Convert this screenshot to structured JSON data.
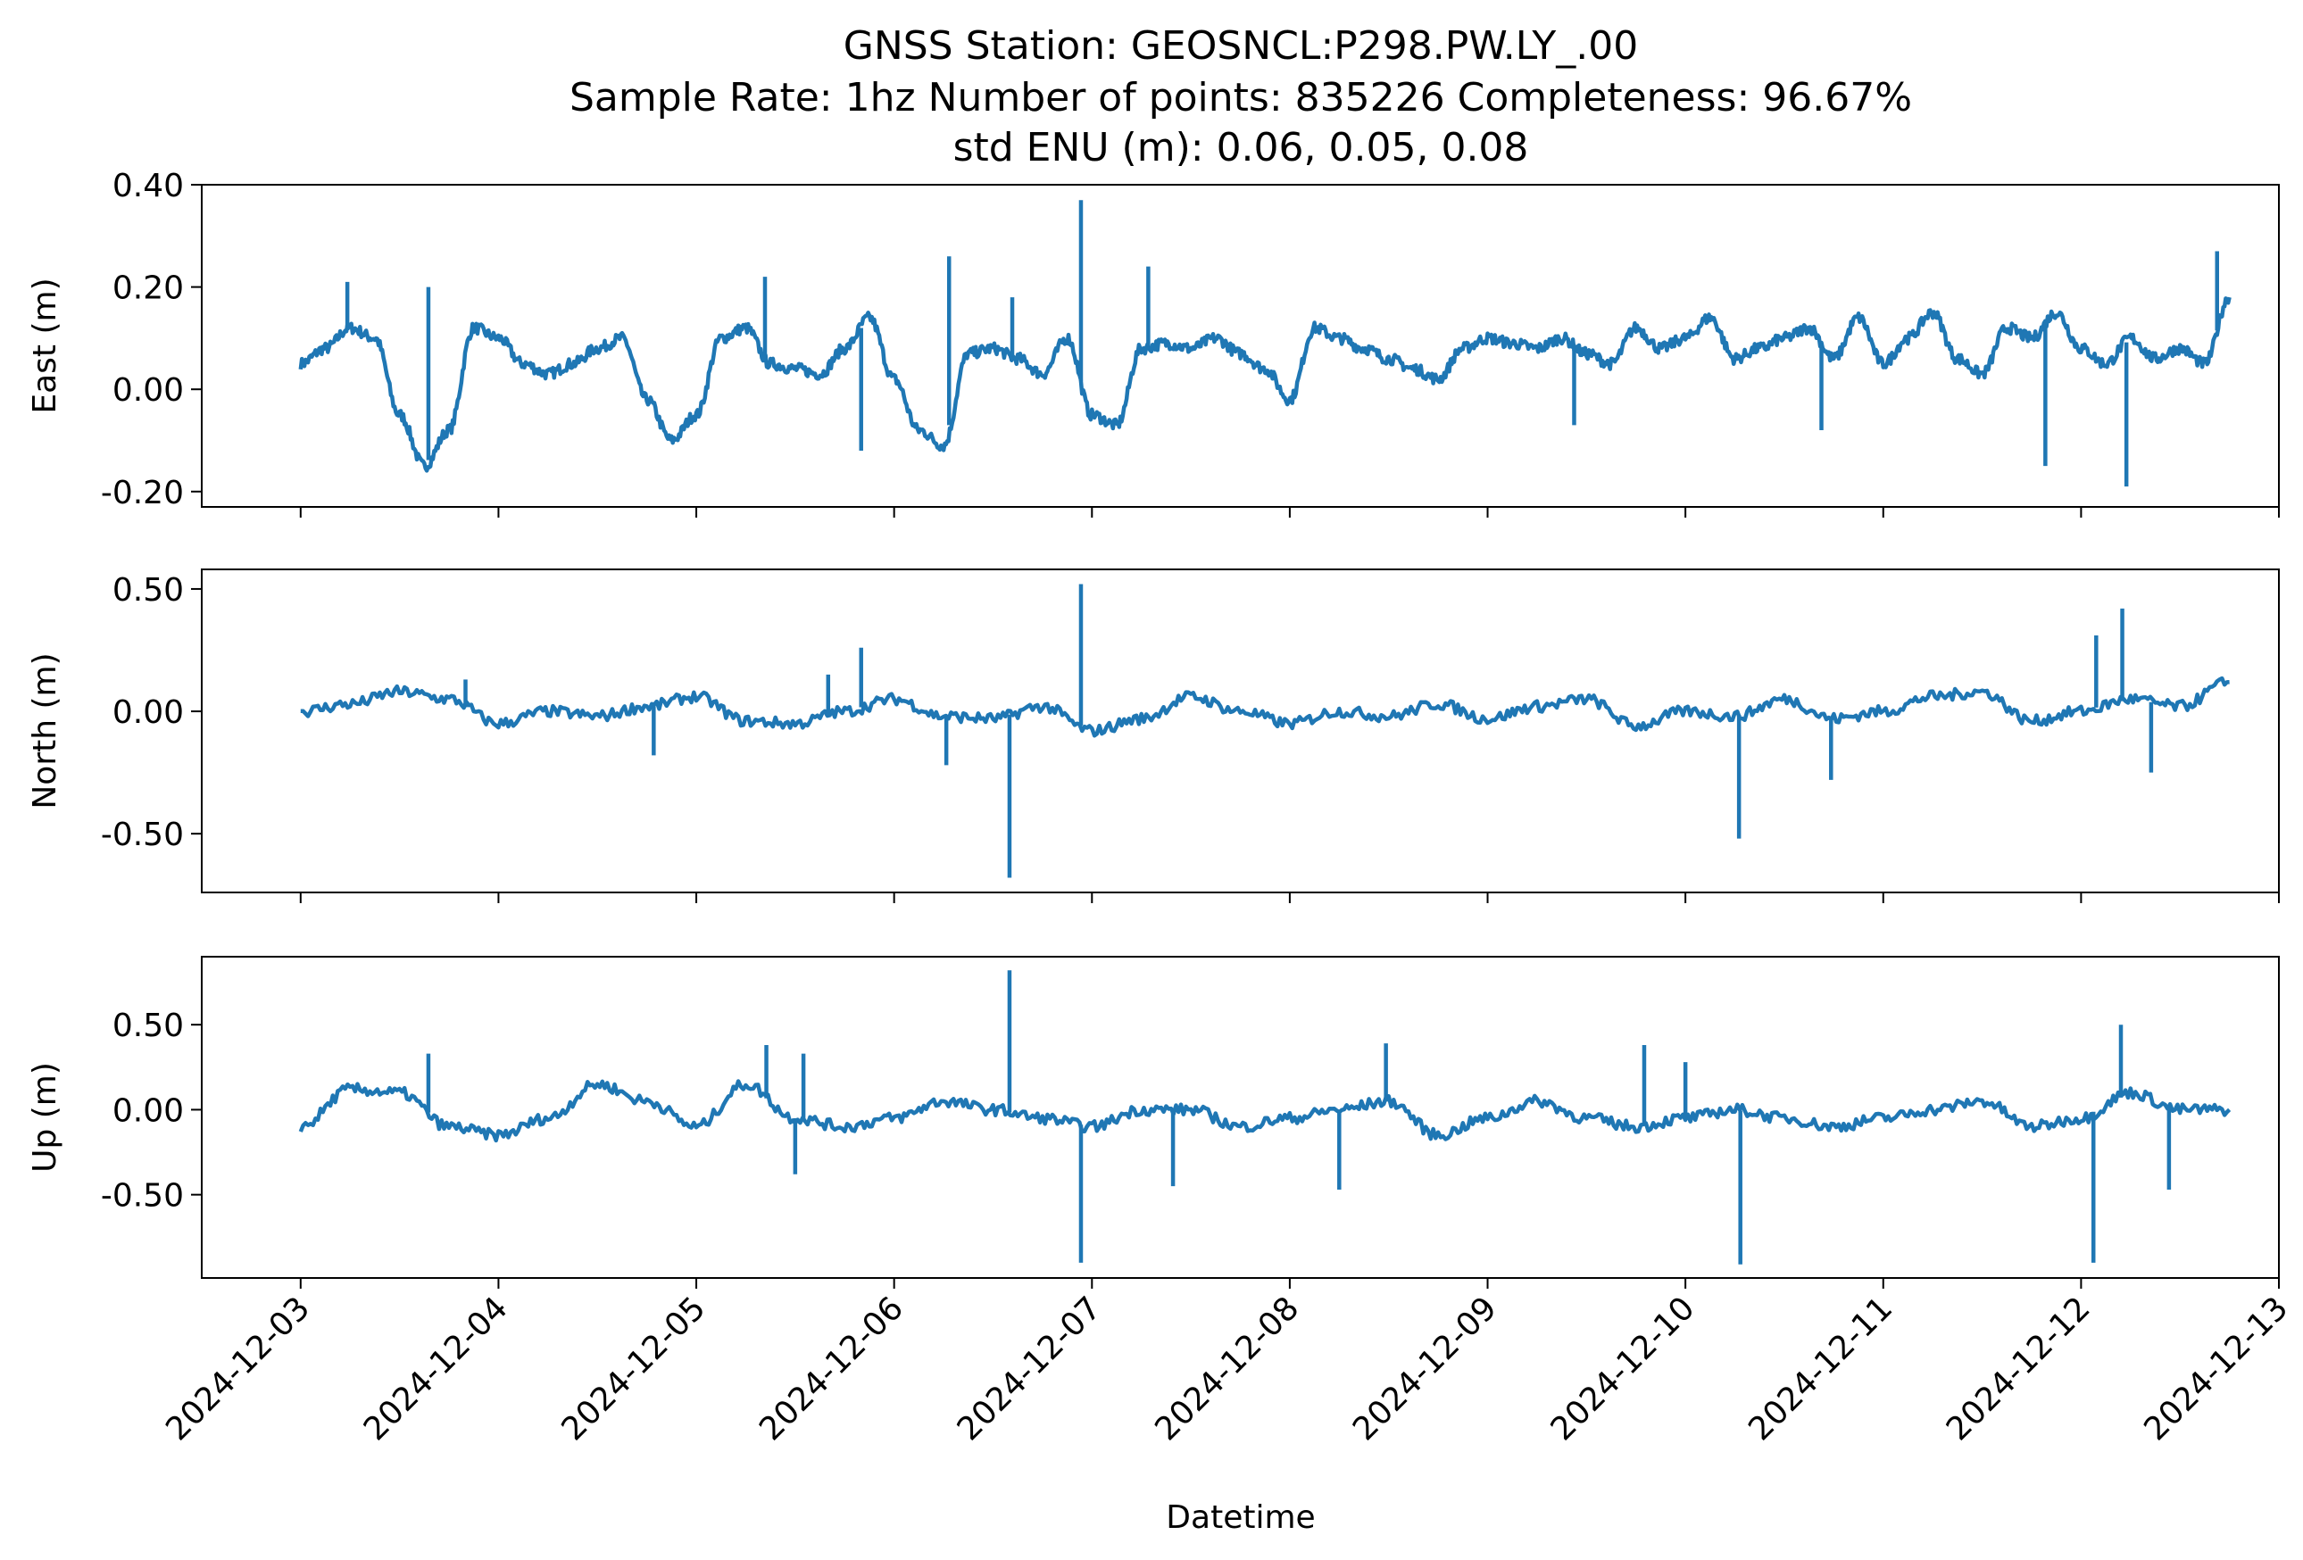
{
  "chart_data": {
    "type": "line",
    "title_lines": [
      "GNSS Station: GEOSNCL:P298.PW.LY_.00",
      "Sample Rate: 1hz   Number of points: 835226    Completeness:  96.67%",
      "std ENU (m):  0.06, 0.05, 0.08"
    ],
    "xlabel": "Datetime",
    "x_ticks": [
      "2024-12-03",
      "2024-12-04",
      "2024-12-05",
      "2024-12-06",
      "2024-12-07",
      "2024-12-08",
      "2024-12-09",
      "2024-12-10",
      "2024-12-11",
      "2024-12-12",
      "2024-12-13"
    ],
    "xlim": [
      "2024-12-02T12:00",
      "2024-12-13T00:00"
    ],
    "line_color": "#1f77b4",
    "grid": false,
    "panels": [
      {
        "ylabel": "East (m)",
        "ylim": [
          -0.23,
          0.4
        ],
        "y_ticks": [
          {
            "value": 0.4,
            "label": "0.40"
          },
          {
            "value": 0.2,
            "label": "0.20"
          },
          {
            "value": 0.0,
            "label": "0.00"
          },
          {
            "value": -0.2,
            "label": "-0.20"
          }
        ],
        "x": [
          "2024-12-03T00:00",
          "2024-12-03T03:00",
          "2024-12-03T06:00",
          "2024-12-03T09:00",
          "2024-12-03T12:00",
          "2024-12-03T15:00",
          "2024-12-03T18:00",
          "2024-12-03T21:00",
          "2024-12-04T00:00",
          "2024-12-04T03:00",
          "2024-12-04T06:00",
          "2024-12-04T09:00",
          "2024-12-04T12:00",
          "2024-12-04T15:00",
          "2024-12-04T18:00",
          "2024-12-04T21:00",
          "2024-12-05T00:00",
          "2024-12-05T03:00",
          "2024-12-05T06:00",
          "2024-12-05T09:00",
          "2024-12-05T12:00",
          "2024-12-05T15:00",
          "2024-12-05T18:00",
          "2024-12-05T21:00",
          "2024-12-06T00:00",
          "2024-12-06T03:00",
          "2024-12-06T06:00",
          "2024-12-06T09:00",
          "2024-12-06T12:00",
          "2024-12-06T15:00",
          "2024-12-06T18:00",
          "2024-12-06T21:00",
          "2024-12-07T00:00",
          "2024-12-07T03:00",
          "2024-12-07T06:00",
          "2024-12-07T09:00",
          "2024-12-07T12:00",
          "2024-12-07T15:00",
          "2024-12-07T18:00",
          "2024-12-07T21:00",
          "2024-12-08T00:00",
          "2024-12-08T03:00",
          "2024-12-08T06:00",
          "2024-12-08T09:00",
          "2024-12-08T12:00",
          "2024-12-08T15:00",
          "2024-12-08T18:00",
          "2024-12-08T21:00",
          "2024-12-09T00:00",
          "2024-12-09T03:00",
          "2024-12-09T06:00",
          "2024-12-09T09:00",
          "2024-12-09T12:00",
          "2024-12-09T15:00",
          "2024-12-09T18:00",
          "2024-12-09T21:00",
          "2024-12-10T00:00",
          "2024-12-10T03:00",
          "2024-12-10T06:00",
          "2024-12-10T09:00",
          "2024-12-10T12:00",
          "2024-12-10T15:00",
          "2024-12-10T18:00",
          "2024-12-10T21:00",
          "2024-12-11T00:00",
          "2024-12-11T03:00",
          "2024-12-11T06:00",
          "2024-12-11T09:00",
          "2024-12-11T12:00",
          "2024-12-11T15:00",
          "2024-12-11T18:00",
          "2024-12-11T21:00",
          "2024-12-12T00:00",
          "2024-12-12T03:00",
          "2024-12-12T06:00",
          "2024-12-12T09:00",
          "2024-12-12T12:00",
          "2024-12-12T15:00",
          "2024-12-12T18:00"
        ],
        "values": [
          0.05,
          0.08,
          0.12,
          0.1,
          -0.05,
          -0.15,
          -0.08,
          0.12,
          0.1,
          0.05,
          0.03,
          0.05,
          0.08,
          0.1,
          -0.02,
          -0.1,
          -0.05,
          0.1,
          0.12,
          0.05,
          0.04,
          0.03,
          0.08,
          0.14,
          0.02,
          -0.08,
          -0.11,
          0.07,
          0.08,
          0.06,
          0.03,
          0.1,
          -0.05,
          -0.07,
          0.08,
          0.09,
          0.08,
          0.1,
          0.07,
          0.04,
          -0.02,
          0.12,
          0.1,
          0.08,
          0.06,
          0.04,
          0.02,
          0.08,
          0.1,
          0.09,
          0.08,
          0.1,
          0.07,
          0.05,
          0.12,
          0.08,
          0.1,
          0.14,
          0.06,
          0.08,
          0.1,
          0.12,
          0.06,
          0.14,
          0.05,
          0.1,
          0.15,
          0.06,
          0.03,
          0.12,
          0.1,
          0.15,
          0.08,
          0.05,
          0.1,
          0.06,
          0.08,
          0.05,
          0.18
        ],
        "spikes": [
          {
            "x": "2024-12-03T05:40",
            "y": 0.21
          },
          {
            "x": "2024-12-03T15:30",
            "y": 0.2
          },
          {
            "x": "2024-12-05T08:20",
            "y": 0.22
          },
          {
            "x": "2024-12-05T20:00",
            "y": -0.12
          },
          {
            "x": "2024-12-06T06:40",
            "y": 0.26
          },
          {
            "x": "2024-12-06T14:20",
            "y": 0.18
          },
          {
            "x": "2024-12-06T22:40",
            "y": 0.37
          },
          {
            "x": "2024-12-07T06:50",
            "y": 0.24
          },
          {
            "x": "2024-12-09T10:30",
            "y": -0.07
          },
          {
            "x": "2024-12-10T16:30",
            "y": -0.08
          },
          {
            "x": "2024-12-11T19:40",
            "y": -0.15
          },
          {
            "x": "2024-12-12T05:30",
            "y": -0.19
          },
          {
            "x": "2024-12-12T16:30",
            "y": 0.27
          }
        ]
      },
      {
        "ylabel": "North (m)",
        "ylim": [
          -0.74,
          0.58
        ],
        "y_ticks": [
          {
            "value": 0.5,
            "label": "0.50"
          },
          {
            "value": 0.0,
            "label": "0.00"
          },
          {
            "value": -0.5,
            "label": "-0.50"
          }
        ],
        "x": [
          "2024-12-03T00:00",
          "2024-12-03T06:00",
          "2024-12-03T12:00",
          "2024-12-03T18:00",
          "2024-12-04T00:00",
          "2024-12-04T06:00",
          "2024-12-04T12:00",
          "2024-12-04T18:00",
          "2024-12-05T00:00",
          "2024-12-05T06:00",
          "2024-12-05T12:00",
          "2024-12-05T18:00",
          "2024-12-06T00:00",
          "2024-12-06T06:00",
          "2024-12-06T12:00",
          "2024-12-06T18:00",
          "2024-12-07T00:00",
          "2024-12-07T06:00",
          "2024-12-07T12:00",
          "2024-12-07T18:00",
          "2024-12-08T00:00",
          "2024-12-08T06:00",
          "2024-12-08T12:00",
          "2024-12-08T18:00",
          "2024-12-09T00:00",
          "2024-12-09T06:00",
          "2024-12-09T12:00",
          "2024-12-09T18:00",
          "2024-12-10T00:00",
          "2024-12-10T06:00",
          "2024-12-10T12:00",
          "2024-12-10T18:00",
          "2024-12-11T00:00",
          "2024-12-11T06:00",
          "2024-12-11T12:00",
          "2024-12-11T18:00",
          "2024-12-12T00:00",
          "2024-12-12T06:00",
          "2024-12-12T12:00",
          "2024-12-12T18:00"
        ],
        "values": [
          0.0,
          0.03,
          0.08,
          0.05,
          -0.05,
          0.0,
          -0.02,
          0.02,
          0.06,
          -0.04,
          -0.05,
          0.0,
          0.05,
          -0.02,
          -0.03,
          0.02,
          -0.08,
          -0.03,
          0.06,
          0.0,
          -0.05,
          0.0,
          -0.02,
          0.03,
          -0.03,
          0.02,
          0.05,
          -0.06,
          0.0,
          -0.02,
          0.05,
          -0.03,
          0.0,
          0.06,
          0.08,
          -0.04,
          0.0,
          0.05,
          0.02,
          0.12
        ],
        "spikes": [
          {
            "x": "2024-12-03T20:00",
            "y": 0.13
          },
          {
            "x": "2024-12-04T18:50",
            "y": -0.18
          },
          {
            "x": "2024-12-05T16:00",
            "y": 0.15
          },
          {
            "x": "2024-12-05T20:00",
            "y": 0.26
          },
          {
            "x": "2024-12-06T06:20",
            "y": -0.22
          },
          {
            "x": "2024-12-06T14:00",
            "y": -0.68
          },
          {
            "x": "2024-12-06T22:40",
            "y": 0.52
          },
          {
            "x": "2024-12-10T06:30",
            "y": -0.52
          },
          {
            "x": "2024-12-10T17:40",
            "y": -0.28
          },
          {
            "x": "2024-12-12T01:50",
            "y": 0.31
          },
          {
            "x": "2024-12-12T05:00",
            "y": 0.42
          },
          {
            "x": "2024-12-12T08:30",
            "y": -0.25
          }
        ]
      },
      {
        "ylabel": "Up (m)",
        "ylim": [
          -0.99,
          0.9
        ],
        "y_ticks": [
          {
            "value": 0.5,
            "label": "0.50"
          },
          {
            "value": 0.0,
            "label": "0.00"
          },
          {
            "value": -0.5,
            "label": "-0.50"
          }
        ],
        "x": [
          "2024-12-03T00:00",
          "2024-12-03T06:00",
          "2024-12-03T12:00",
          "2024-12-03T18:00",
          "2024-12-04T00:00",
          "2024-12-04T06:00",
          "2024-12-04T12:00",
          "2024-12-04T18:00",
          "2024-12-05T00:00",
          "2024-12-05T06:00",
          "2024-12-05T12:00",
          "2024-12-05T18:00",
          "2024-12-06T00:00",
          "2024-12-06T06:00",
          "2024-12-06T12:00",
          "2024-12-06T18:00",
          "2024-12-07T00:00",
          "2024-12-07T06:00",
          "2024-12-07T12:00",
          "2024-12-07T18:00",
          "2024-12-08T00:00",
          "2024-12-08T06:00",
          "2024-12-08T12:00",
          "2024-12-08T18:00",
          "2024-12-09T00:00",
          "2024-12-09T06:00",
          "2024-12-09T12:00",
          "2024-12-09T18:00",
          "2024-12-10T00:00",
          "2024-12-10T06:00",
          "2024-12-10T12:00",
          "2024-12-10T18:00",
          "2024-12-11T00:00",
          "2024-12-11T06:00",
          "2024-12-11T12:00",
          "2024-12-11T18:00",
          "2024-12-12T00:00",
          "2024-12-12T06:00",
          "2024-12-12T12:00",
          "2024-12-12T18:00"
        ],
        "values": [
          -0.1,
          0.12,
          0.1,
          -0.1,
          -0.15,
          -0.05,
          0.15,
          0.05,
          -0.1,
          0.15,
          -0.05,
          -0.1,
          -0.05,
          0.05,
          0.0,
          -0.05,
          -0.1,
          0.0,
          0.0,
          -0.1,
          -0.05,
          0.0,
          0.05,
          -0.15,
          -0.05,
          0.05,
          -0.05,
          -0.1,
          -0.05,
          0.0,
          -0.05,
          -0.1,
          -0.05,
          0.0,
          0.05,
          -0.1,
          -0.05,
          0.1,
          0.0,
          0.0
        ],
        "spikes": [
          {
            "x": "2024-12-03T15:30",
            "y": 0.33
          },
          {
            "x": "2024-12-05T08:30",
            "y": 0.38
          },
          {
            "x": "2024-12-05T13:00",
            "y": 0.33
          },
          {
            "x": "2024-12-05T12:00",
            "y": -0.38
          },
          {
            "x": "2024-12-06T14:00",
            "y": 0.82
          },
          {
            "x": "2024-12-06T22:40",
            "y": -0.9
          },
          {
            "x": "2024-12-07T09:50",
            "y": -0.45
          },
          {
            "x": "2024-12-08T06:00",
            "y": -0.47
          },
          {
            "x": "2024-12-08T11:40",
            "y": 0.39
          },
          {
            "x": "2024-12-09T19:00",
            "y": 0.38
          },
          {
            "x": "2024-12-10T00:00",
            "y": 0.28
          },
          {
            "x": "2024-12-10T06:40",
            "y": -0.91
          },
          {
            "x": "2024-12-12T01:30",
            "y": -0.9
          },
          {
            "x": "2024-12-12T04:50",
            "y": 0.5
          },
          {
            "x": "2024-12-12T10:40",
            "y": -0.47
          }
        ]
      }
    ]
  }
}
